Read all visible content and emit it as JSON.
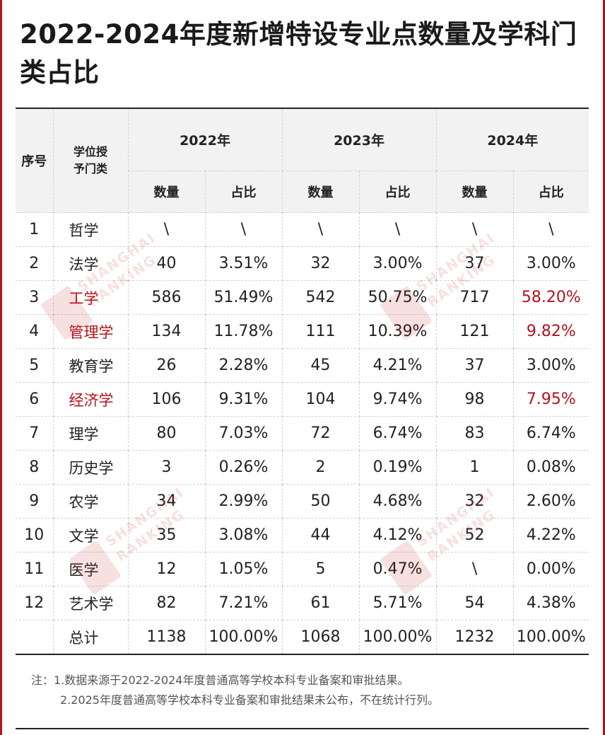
{
  "title": "2022-2024年度新增特设专业点数量及学科门类占比",
  "table": {
    "header": {
      "index": "序号",
      "category": "学位授予门类",
      "years": [
        "2022年",
        "2023年",
        "2024年"
      ],
      "count_label": "数量",
      "share_label": "占比"
    },
    "rows": [
      {
        "no": "1",
        "cat": "哲学",
        "v": [
          "\\",
          "\\",
          "\\",
          "\\",
          "\\",
          "\\"
        ]
      },
      {
        "no": "2",
        "cat": "法学",
        "v": [
          "40",
          "3.51%",
          "32",
          "3.00%",
          "37",
          "3.00%"
        ]
      },
      {
        "no": "3",
        "cat": "工学",
        "v": [
          "586",
          "51.49%",
          "542",
          "50.75%",
          "717",
          "58.20%"
        ]
      },
      {
        "no": "4",
        "cat": "管理学",
        "v": [
          "134",
          "11.78%",
          "111",
          "10.39%",
          "121",
          "9.82%"
        ]
      },
      {
        "no": "5",
        "cat": "教育学",
        "v": [
          "26",
          "2.28%",
          "45",
          "4.21%",
          "37",
          "3.00%"
        ]
      },
      {
        "no": "6",
        "cat": "经济学",
        "v": [
          "106",
          "9.31%",
          "104",
          "9.74%",
          "98",
          "7.95%"
        ]
      },
      {
        "no": "7",
        "cat": "理学",
        "v": [
          "80",
          "7.03%",
          "72",
          "6.74%",
          "83",
          "6.74%"
        ]
      },
      {
        "no": "8",
        "cat": "历史学",
        "v": [
          "3",
          "0.26%",
          "2",
          "0.19%",
          "1",
          "0.08%"
        ]
      },
      {
        "no": "9",
        "cat": "农学",
        "v": [
          "34",
          "2.99%",
          "50",
          "4.68%",
          "32",
          "2.60%"
        ]
      },
      {
        "no": "10",
        "cat": "文学",
        "v": [
          "35",
          "3.08%",
          "44",
          "4.12%",
          "52",
          "4.22%"
        ]
      },
      {
        "no": "11",
        "cat": "医学",
        "v": [
          "12",
          "1.05%",
          "5",
          "0.47%",
          "\\",
          "0.00%"
        ]
      },
      {
        "no": "12",
        "cat": "艺术学",
        "v": [
          "82",
          "7.21%",
          "61",
          "5.71%",
          "54",
          "4.38%"
        ]
      },
      {
        "no": "",
        "cat": "总计",
        "v": [
          "1138",
          "100.00%",
          "1068",
          "100.00%",
          "1232",
          "100.00%"
        ]
      }
    ]
  },
  "notes": [
    "注：1.数据来源于2022-2024年度普通高等学校本科专业备案和审批结果。",
    "2.2025年度普通高等学校本科专业备案和审批结果未公布，不在统计行列。"
  ],
  "watermark": {
    "text_line1": "SHANGHAI",
    "text_line2": "RANKING"
  },
  "colors": {
    "highlight": "#b5121b",
    "border": "#222222",
    "header_bg": "#f2f2f2"
  }
}
